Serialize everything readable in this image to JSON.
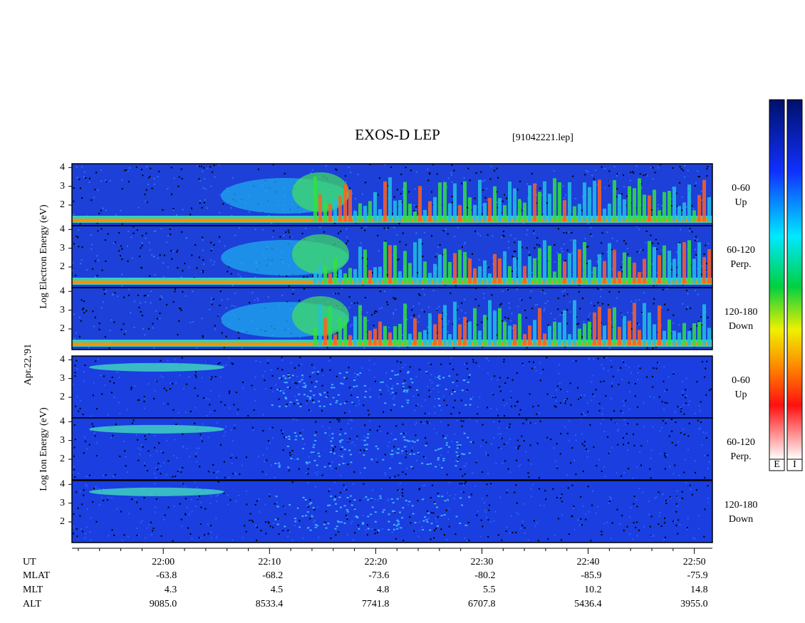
{
  "chart_data": {
    "type": "spectrogram",
    "title": "EXOS-D LEP",
    "file_label": "[91042221.lep]",
    "date_label": "Apr.22,'91",
    "xlabel": "UT",
    "xlim": [
      1311.4,
      1371.7
    ],
    "xticks": [
      {
        "value": 1320,
        "label": "22:00"
      },
      {
        "value": 1330,
        "label": "22:10"
      },
      {
        "value": 1340,
        "label": "22:20"
      },
      {
        "value": 1350,
        "label": "22:30"
      },
      {
        "value": 1360,
        "label": "22:40"
      },
      {
        "value": 1370,
        "label": "22:50"
      }
    ],
    "xminorticks": [
      1312,
      1314,
      1316,
      1318,
      1322,
      1324,
      1326,
      1328,
      1332,
      1334,
      1336,
      1338,
      1342,
      1344,
      1346,
      1348,
      1352,
      1354,
      1356,
      1358,
      1362,
      1364,
      1366,
      1368
    ],
    "ylim": [
      0.9,
      4.2
    ],
    "yticks": [
      2,
      3,
      4
    ],
    "groups": [
      {
        "ylabel": "Log Electron Energy (eV)",
        "panels": [
          {
            "pitch": "0-60",
            "direction": "Up"
          },
          {
            "pitch": "60-120",
            "direction": "Perp."
          },
          {
            "pitch": "120-180",
            "direction": "Down"
          }
        ]
      },
      {
        "ylabel": "Log Ion Energy (eV)",
        "panels": [
          {
            "pitch": "0-60",
            "direction": "Up"
          },
          {
            "pitch": "60-120",
            "direction": "Perp."
          },
          {
            "pitch": "120-180",
            "direction": "Down"
          }
        ]
      }
    ],
    "ephemeris": [
      {
        "name": "MLAT",
        "values": [
          "-63.8",
          "-68.2",
          "-73.6",
          "-80.2",
          "-85.9",
          "-75.9"
        ]
      },
      {
        "name": "MLT",
        "values": [
          "4.3",
          "4.5",
          "4.8",
          "5.5",
          "10.2",
          "14.8"
        ]
      },
      {
        "name": "ALT",
        "values": [
          "9085.0",
          "8533.4",
          "7741.8",
          "6707.8",
          "5436.4",
          "3955.0"
        ]
      }
    ],
    "colorbars": [
      "E",
      "I"
    ]
  }
}
